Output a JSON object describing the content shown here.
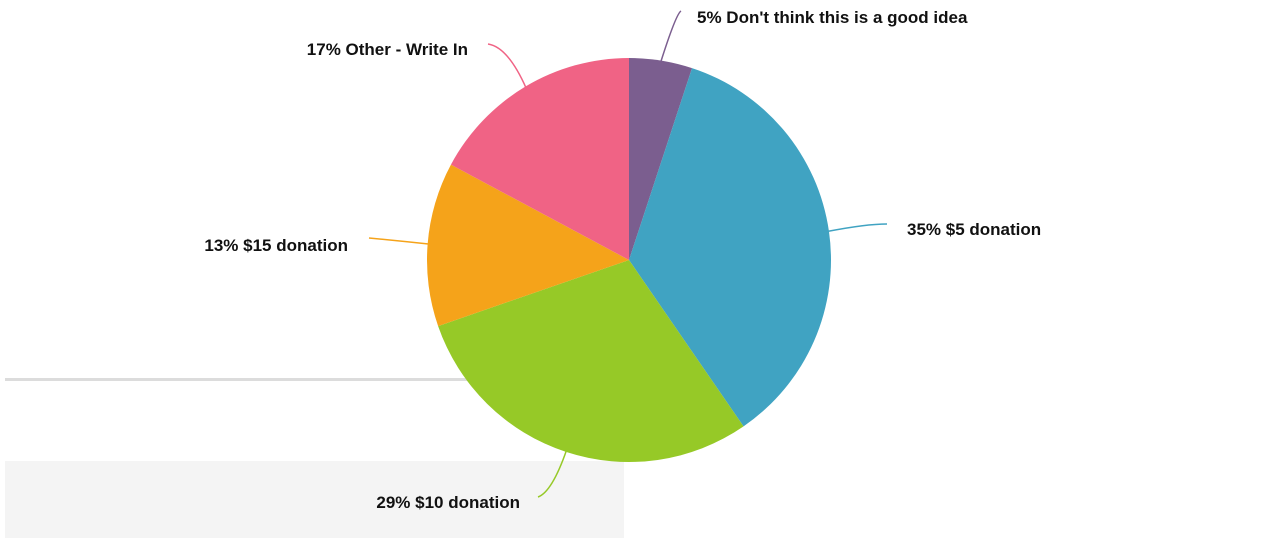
{
  "chart_data": {
    "type": "pie",
    "slices": [
      {
        "label": "Don't think this is a good idea",
        "value": 5,
        "display": "5% Don't think this is a good idea",
        "color": "#7b5e8f"
      },
      {
        "label": "$5 donation",
        "value": 35,
        "display": "35% $5 donation",
        "color": "#40a3c2"
      },
      {
        "label": "$10 donation",
        "value": 29,
        "display": "29% $10 donation",
        "color": "#96c927"
      },
      {
        "label": "$15 donation",
        "value": 13,
        "display": "13% $15 donation",
        "color": "#f5a31a"
      },
      {
        "label": "Other - Write In",
        "value": 17,
        "display": "17% Other - Write In",
        "color": "#f06385"
      }
    ],
    "legend": "none",
    "start_angle": "12 o'clock",
    "direction": "clockwise"
  }
}
